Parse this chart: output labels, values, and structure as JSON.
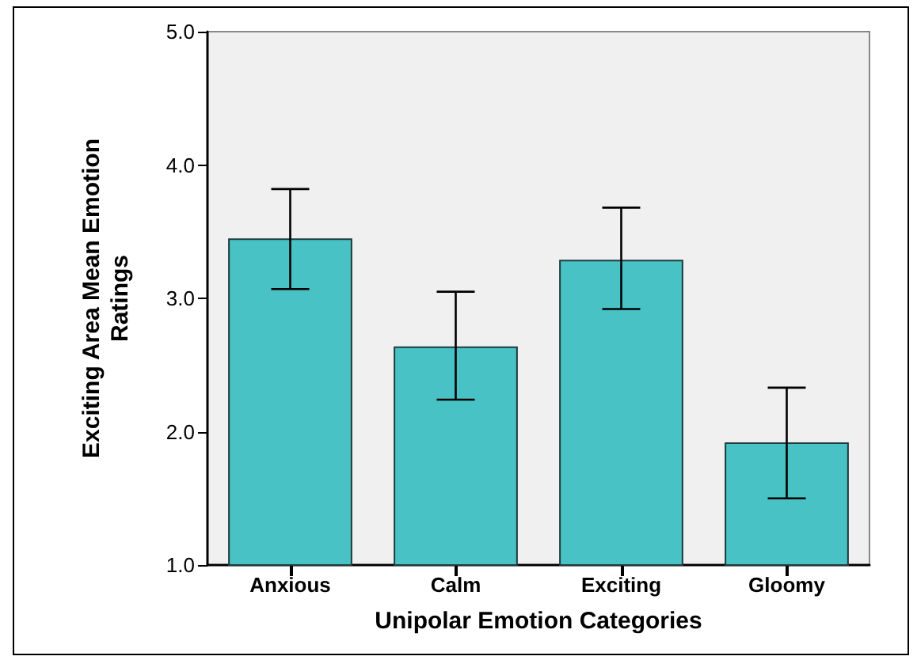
{
  "chart_data": {
    "type": "bar",
    "xlabel": "Unipolar Emotion Categories",
    "ylabel": "Exciting Area Mean Emotion\nRatings",
    "categories": [
      "Anxious",
      "Calm",
      "Exciting",
      "Gloomy"
    ],
    "values": [
      3.45,
      2.64,
      3.29,
      1.92
    ],
    "errors": [
      [
        3.07,
        3.82
      ],
      [
        2.24,
        3.05
      ],
      [
        2.92,
        3.68
      ],
      [
        1.5,
        2.33
      ]
    ],
    "color": "#48c2c5",
    "ylim": [
      1.0,
      5.0
    ],
    "yticks": [
      {
        "value": 1,
        "label": "1.0"
      },
      {
        "value": 2,
        "label": "2.0"
      },
      {
        "value": 3,
        "label": "3.0"
      },
      {
        "value": 4,
        "label": "4.0"
      },
      {
        "value": 5,
        "label": "5.0"
      }
    ],
    "grid": false
  }
}
